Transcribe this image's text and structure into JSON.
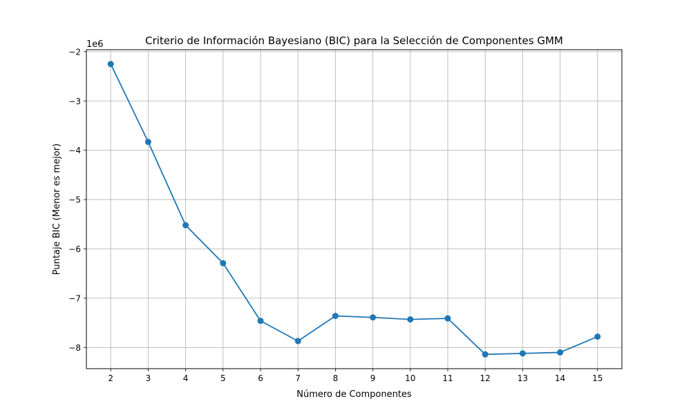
{
  "chart_data": {
    "type": "line",
    "title": "Criterio de Información Bayesiano (BIC) para la Selección de Componentes GMM",
    "xlabel": "Número de Componentes",
    "ylabel": "Puntaje BIC (Menor es mejor)",
    "y_offset_label": "1e6",
    "x": [
      2,
      3,
      4,
      5,
      6,
      7,
      8,
      9,
      10,
      11,
      12,
      13,
      14,
      15
    ],
    "series": [
      {
        "values": [
          -2.25,
          -3.83,
          -5.52,
          -6.29,
          -7.46,
          -7.87,
          -7.36,
          -7.39,
          -7.43,
          -7.41,
          -8.14,
          -8.12,
          -8.1,
          -7.78
        ],
        "color": "#1f77b4",
        "marker": "circle"
      }
    ],
    "xticks": [
      "2",
      "3",
      "4",
      "5",
      "6",
      "7",
      "8",
      "9",
      "10",
      "11",
      "12",
      "13",
      "14",
      "15"
    ],
    "yticks": [
      "−8",
      "−7",
      "−6",
      "−5",
      "−4",
      "−3",
      "−2"
    ],
    "ytick_values": [
      -8,
      -7,
      -6,
      -5,
      -4,
      -3,
      -2
    ],
    "xlim": [
      1.35,
      15.65
    ],
    "ylim": [
      -8.43,
      -1.96
    ],
    "grid": true,
    "grid_color": "#b0b0b0"
  }
}
